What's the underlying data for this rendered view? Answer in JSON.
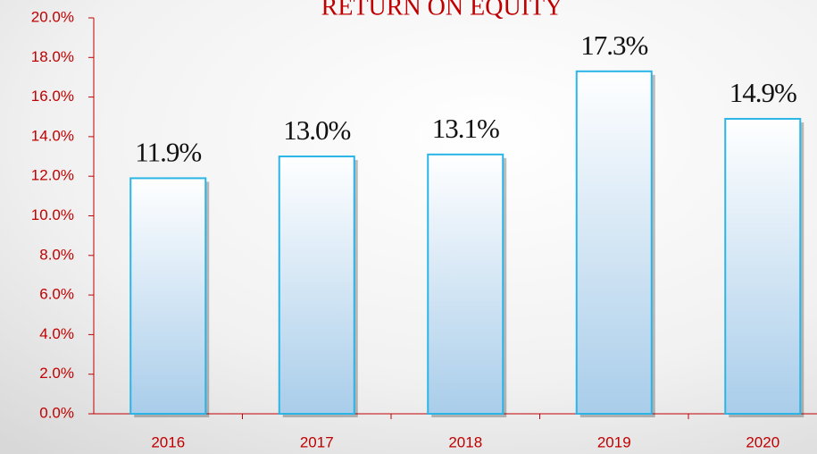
{
  "chart_data": {
    "type": "bar",
    "title": "RETURN ON EQUITY",
    "categories": [
      "2016",
      "2017",
      "2018",
      "2019",
      "2020"
    ],
    "values": [
      11.9,
      13.0,
      13.1,
      17.3,
      14.9
    ],
    "value_labels": [
      "11.9%",
      "13.0%",
      "13.1%",
      "17.3%",
      "14.9%"
    ],
    "color": "#2bb5e6",
    "ylim": [
      0,
      20
    ],
    "yticks": [
      {
        "value": 0,
        "label": "0.0%"
      },
      {
        "value": 2,
        "label": "2.0%"
      },
      {
        "value": 4,
        "label": "4.0%"
      },
      {
        "value": 6,
        "label": "6.0%"
      },
      {
        "value": 8,
        "label": "8.0%"
      },
      {
        "value": 10,
        "label": "10.0%"
      },
      {
        "value": 12,
        "label": "12.0%"
      },
      {
        "value": 14,
        "label": "14.0%"
      },
      {
        "value": 16,
        "label": "16.0%"
      },
      {
        "value": 18,
        "label": "18.0%"
      },
      {
        "value": 20,
        "label": "20.0%"
      }
    ],
    "grid": false
  }
}
